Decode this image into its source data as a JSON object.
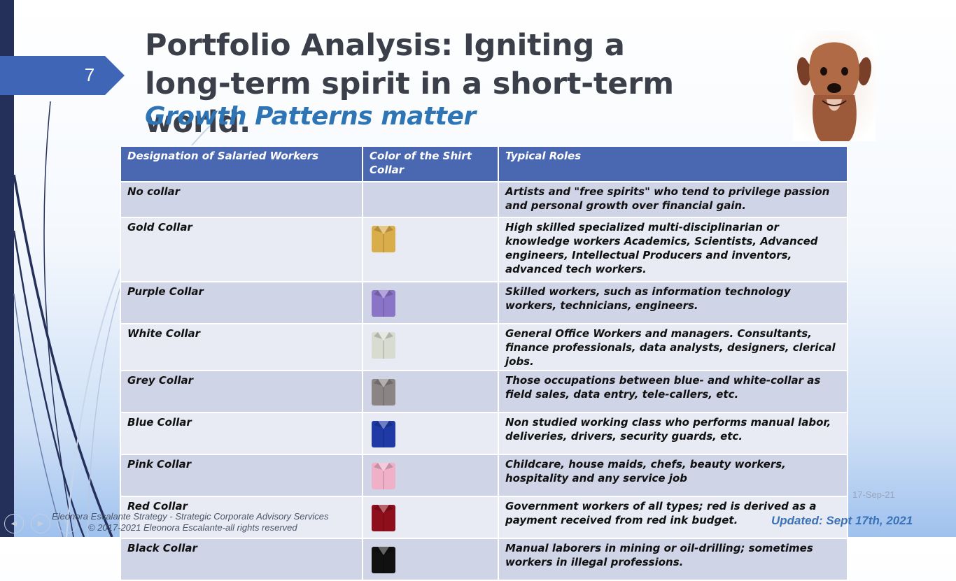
{
  "slide": {
    "number": "7",
    "title": "Portfolio Analysis: Igniting a long-term spirit in a short-term world.",
    "subtitle": "Growth Patterns matter"
  },
  "colors": {
    "accent": "#4a67b1",
    "title": "#3b3f4a",
    "subtitle": "#2e75b6",
    "left_bar": "#24305a"
  },
  "table": {
    "headers": [
      "Designation of Salaried Workers",
      "Color of the Shirt Collar",
      "Typical Roles"
    ],
    "rows": [
      {
        "designation": "No collar",
        "shirt_icon": "",
        "roles": "Artists and \"free spirits\" who tend to privilege passion and personal growth over financial gain."
      },
      {
        "designation": "Gold Collar",
        "shirt_icon": "gold-shirt-icon",
        "shirt_color": "#d9ad4a",
        "roles": "High skilled specialized multi-disciplinarian or knowledge workers Academics, Scientists, Advanced engineers, Intellectual Producers and inventors, advanced tech workers."
      },
      {
        "designation": "Purple Collar",
        "shirt_icon": "purple-shirt-icon",
        "shirt_color": "#8a74c8",
        "roles": "Skilled workers, such as information technology workers, technicians, engineers."
      },
      {
        "designation": "White Collar",
        "shirt_icon": "white-shirt-icon",
        "shirt_color": "#d8dbd0",
        "roles": "General Office Workers and managers. Consultants, finance professionals, data analysts, designers, clerical jobs."
      },
      {
        "designation": "Grey Collar",
        "shirt_icon": "grey-shirt-icon",
        "shirt_color": "#8a8484",
        "roles": "Those occupations between blue- and white-collar as field sales, data entry, tele-callers, etc."
      },
      {
        "designation": "Blue Collar",
        "shirt_icon": "blue-shirt-icon",
        "shirt_color": "#1f3aa6",
        "roles": "Non studied working class who performs manual labor, deliveries, drivers, security guards, etc."
      },
      {
        "designation": "Pink Collar",
        "shirt_icon": "pink-shirt-icon",
        "shirt_color": "#efb0c8",
        "roles": "Childcare, house maids, chefs, beauty workers, hospitality and any service job"
      },
      {
        "designation": "Red Collar",
        "shirt_icon": "red-shirt-icon",
        "shirt_color": "#8e0e1c",
        "roles": "Government workers of all types; red is derived as a payment received from red ink budget."
      },
      {
        "designation": "Black Collar",
        "shirt_icon": "black-shirt-icon",
        "shirt_color": "#111111",
        "roles": "Manual laborers in mining or oil-drilling; sometimes workers in illegal professions."
      }
    ]
  },
  "footer": {
    "line1": "Eleonora Escalante Strategy - Strategic Corporate Advisory Services",
    "line2": "© 2017-2021  Eleonora Escalante-all rights reserved",
    "date": "17-Sep-21",
    "updated": "Updated:  Sept 17th, 2021"
  }
}
